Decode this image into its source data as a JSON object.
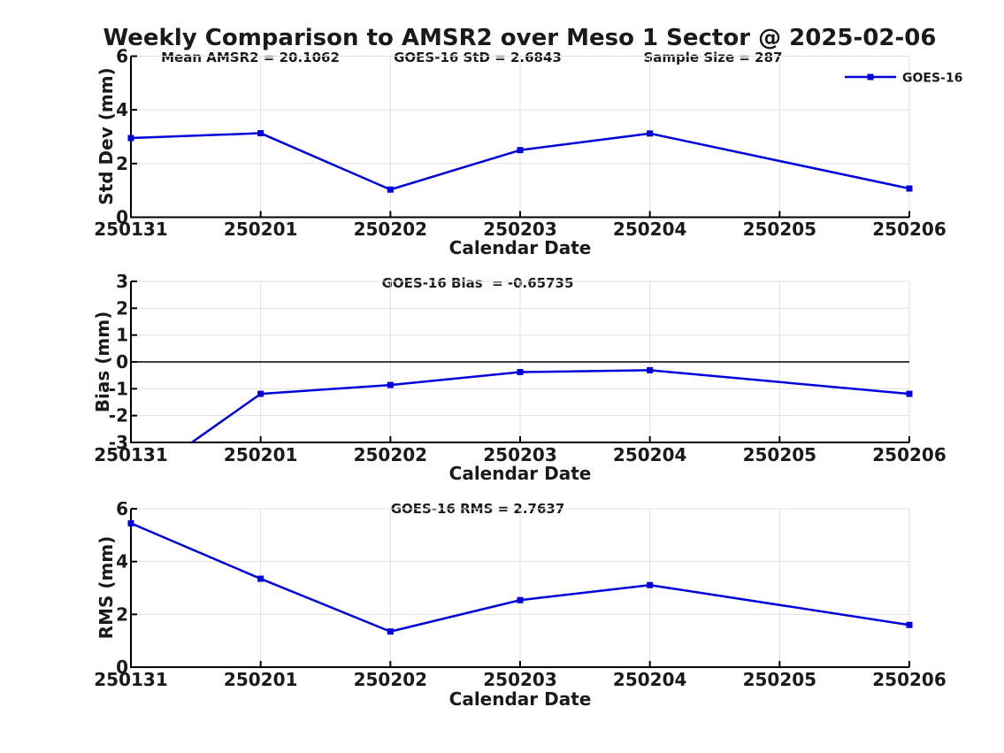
{
  "title": "Weekly Comparison to AMSR2 over Meso 1 Sector @ 2025-02-06",
  "legend": {
    "label": "GOES-16",
    "color": "#0000dd",
    "position": "top-right",
    "marker": "square"
  },
  "colors": {
    "line": "#0000dd",
    "grid": "#e0e0e0",
    "axis": "#000000",
    "text": "#1a1a1a",
    "zero_line": "#000000"
  },
  "chart_data": [
    {
      "type": "line",
      "panel": "std-dev",
      "ylabel": "Std Dev (mm)",
      "xlabel": "Calendar Date",
      "ylim": [
        0,
        6
      ],
      "yticks": [
        0,
        2,
        4,
        6
      ],
      "grid": true,
      "categories": [
        "250131",
        "250201",
        "250202",
        "250203",
        "250204",
        "250205",
        "250206"
      ],
      "annotations": [
        {
          "text": "Mean AMSR2 = 20.1062"
        },
        {
          "text": "GOES-16 StD = 2.6843"
        },
        {
          "text": "Sample Size = 287"
        }
      ],
      "series": [
        {
          "name": "GOES-16",
          "color": "#0000dd",
          "marker": "square",
          "values": [
            2.95,
            3.13,
            1.03,
            2.5,
            3.12,
            null,
            1.07
          ]
        }
      ]
    },
    {
      "type": "line",
      "panel": "bias",
      "ylabel": "Bias (mm)",
      "xlabel": "Calendar Date",
      "ylim": [
        -3,
        3
      ],
      "yticks": [
        -3,
        -2,
        -1,
        0,
        1,
        2,
        3
      ],
      "zero_line": true,
      "grid": true,
      "categories": [
        "250131",
        "250201",
        "250202",
        "250203",
        "250204",
        "250205",
        "250206"
      ],
      "annotations": [
        {
          "text": "GOES-16 Bias  = -0.65735"
        }
      ],
      "series": [
        {
          "name": "GOES-16",
          "color": "#0000dd",
          "marker": "square",
          "values": [
            -4.6,
            -1.19,
            -0.86,
            -0.38,
            -0.31,
            null,
            -1.19
          ]
        }
      ]
    },
    {
      "type": "line",
      "panel": "rms",
      "ylabel": "RMS (mm)",
      "xlabel": "Calendar Date",
      "ylim": [
        0,
        6
      ],
      "yticks": [
        0,
        2,
        4,
        6
      ],
      "grid": true,
      "categories": [
        "250131",
        "250201",
        "250202",
        "250203",
        "250204",
        "250205",
        "250206"
      ],
      "annotations": [
        {
          "text": "GOES-16 RMS = 2.7637"
        }
      ],
      "series": [
        {
          "name": "GOES-16",
          "color": "#0000dd",
          "marker": "square",
          "values": [
            5.45,
            3.35,
            1.35,
            2.54,
            3.11,
            null,
            1.6
          ]
        }
      ]
    }
  ]
}
